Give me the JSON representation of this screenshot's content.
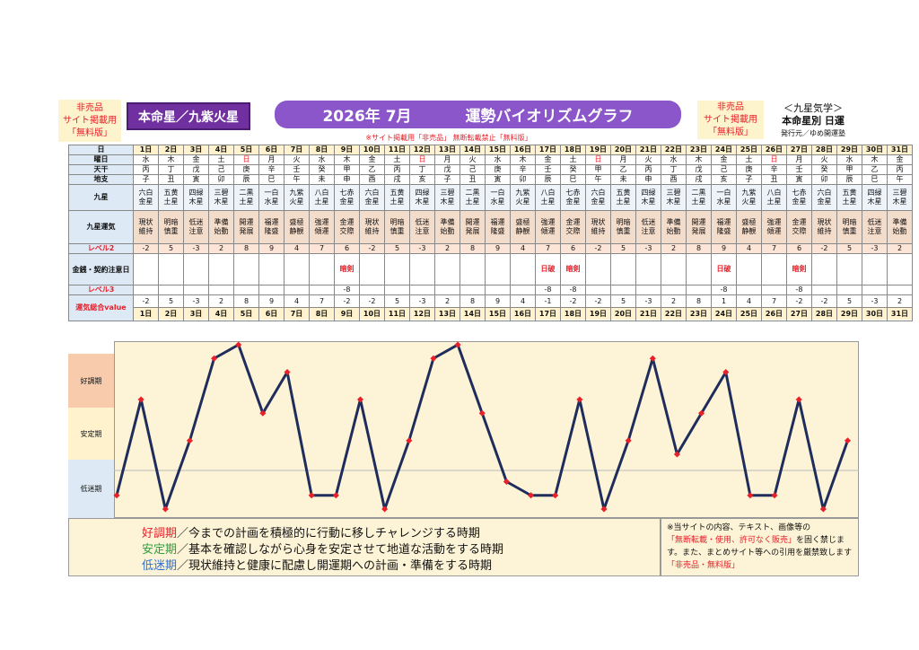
{
  "header": {
    "left_badge": [
      "非売品",
      "サイト掲載用",
      "「無料版」"
    ],
    "honmei": "本命星／九紫火星",
    "title_left": "2026年 7月",
    "title_right": "運勢バイオリズムグラフ",
    "notice": "※サイト掲載用「非売品」 無断転載禁止「無料版」",
    "right_badge": [
      "非売品",
      "サイト掲載用",
      "「無料版」"
    ],
    "kyusei_title": "＜九星気学＞",
    "kyusei_sub": "本命星別 日運",
    "publisher": "発行元／ゆめ開運塾"
  },
  "labels": {
    "day": "日",
    "yobi": "曜日",
    "tenkan": "天干",
    "chishi": "地支",
    "kyusei": "九星",
    "unki": "九星運気",
    "lv2": "レベル2",
    "kin": "金銭・契約注意日",
    "lv3": "レベル3",
    "total": "運気総合value"
  },
  "days": [
    "1日",
    "2日",
    "3日",
    "4日",
    "5日",
    "6日",
    "7日",
    "8日",
    "9日",
    "10日",
    "11日",
    "12日",
    "13日",
    "14日",
    "15日",
    "16日",
    "17日",
    "18日",
    "19日",
    "20日",
    "21日",
    "22日",
    "23日",
    "24日",
    "25日",
    "26日",
    "27日",
    "28日",
    "29日",
    "30日",
    "31日"
  ],
  "yobi": [
    "水",
    "木",
    "金",
    "土",
    "日",
    "月",
    "火",
    "水",
    "木",
    "金",
    "土",
    "日",
    "月",
    "火",
    "水",
    "木",
    "金",
    "土",
    "日",
    "月",
    "火",
    "水",
    "木",
    "金",
    "土",
    "日",
    "月",
    "火",
    "水",
    "木",
    "金"
  ],
  "tenkan": [
    "丙",
    "丁",
    "戊",
    "己",
    "庚",
    "辛",
    "壬",
    "癸",
    "甲",
    "乙",
    "丙",
    "丁",
    "戊",
    "己",
    "庚",
    "辛",
    "壬",
    "癸",
    "甲",
    "乙",
    "丙",
    "丁",
    "戊",
    "己",
    "庚",
    "辛",
    "壬",
    "癸",
    "甲",
    "乙",
    "丙"
  ],
  "chishi": [
    "子",
    "丑",
    "寅",
    "卯",
    "辰",
    "巳",
    "午",
    "未",
    "申",
    "酉",
    "戌",
    "亥",
    "子",
    "丑",
    "寅",
    "卯",
    "辰",
    "巳",
    "午",
    "未",
    "申",
    "酉",
    "戌",
    "亥",
    "子",
    "丑",
    "寅",
    "卯",
    "辰",
    "巳",
    "午"
  ],
  "kyusei": [
    [
      "六白",
      "金星"
    ],
    [
      "五黄",
      "土星"
    ],
    [
      "四緑",
      "木星"
    ],
    [
      "三碧",
      "木星"
    ],
    [
      "二黒",
      "土星"
    ],
    [
      "一白",
      "水星"
    ],
    [
      "九紫",
      "火星"
    ],
    [
      "八白",
      "土星"
    ],
    [
      "七赤",
      "金星"
    ],
    [
      "六白",
      "金星"
    ],
    [
      "五黄",
      "土星"
    ],
    [
      "四緑",
      "木星"
    ],
    [
      "三碧",
      "木星"
    ],
    [
      "二黒",
      "土星"
    ],
    [
      "一白",
      "水星"
    ],
    [
      "九紫",
      "火星"
    ],
    [
      "八白",
      "土星"
    ],
    [
      "七赤",
      "金星"
    ],
    [
      "六白",
      "金星"
    ],
    [
      "五黄",
      "土星"
    ],
    [
      "四緑",
      "木星"
    ],
    [
      "三碧",
      "木星"
    ],
    [
      "二黒",
      "土星"
    ],
    [
      "一白",
      "水星"
    ],
    [
      "九紫",
      "火星"
    ],
    [
      "八白",
      "土星"
    ],
    [
      "七赤",
      "金星"
    ],
    [
      "六白",
      "金星"
    ],
    [
      "五黄",
      "土星"
    ],
    [
      "四緑",
      "木星"
    ],
    [
      "三碧",
      "木星"
    ]
  ],
  "unki": [
    [
      "現状",
      "維持"
    ],
    [
      "明暗",
      "慎重"
    ],
    [
      "低迷",
      "注意"
    ],
    [
      "準備",
      "始動"
    ],
    [
      "開運",
      "発展"
    ],
    [
      "福運",
      "隆盛"
    ],
    [
      "盛極",
      "静観"
    ],
    [
      "強運",
      "傾運"
    ],
    [
      "金運",
      "交際"
    ],
    [
      "現状",
      "維持"
    ],
    [
      "明暗",
      "慎重"
    ],
    [
      "低迷",
      "注意"
    ],
    [
      "準備",
      "始動"
    ],
    [
      "開運",
      "発展"
    ],
    [
      "福運",
      "隆盛"
    ],
    [
      "盛極",
      "静観"
    ],
    [
      "強運",
      "傾運"
    ],
    [
      "金運",
      "交際"
    ],
    [
      "現状",
      "維持"
    ],
    [
      "明暗",
      "慎重"
    ],
    [
      "低迷",
      "注意"
    ],
    [
      "準備",
      "始動"
    ],
    [
      "開運",
      "発展"
    ],
    [
      "福運",
      "隆盛"
    ],
    [
      "盛極",
      "静観"
    ],
    [
      "強運",
      "傾運"
    ],
    [
      "金運",
      "交際"
    ],
    [
      "現状",
      "維持"
    ],
    [
      "明暗",
      "慎重"
    ],
    [
      "低迷",
      "注意"
    ],
    [
      "準備",
      "始動"
    ]
  ],
  "lv2": [
    "-2",
    "5",
    "-3",
    "2",
    "8",
    "9",
    "4",
    "7",
    "6",
    "-2",
    "5",
    "-3",
    "2",
    "8",
    "9",
    "4",
    "7",
    "6",
    "-2",
    "5",
    "-3",
    "2",
    "8",
    "9",
    "4",
    "7",
    "6",
    "-2",
    "5",
    "-3",
    "2"
  ],
  "kin": [
    "",
    "",
    "",
    "",
    "",
    "",
    "",
    "",
    "暗剣",
    "",
    "",
    "",
    "",
    "",
    "",
    "",
    "日破",
    "暗剣",
    "",
    "",
    "",
    "",
    "",
    "日破",
    "",
    "",
    "暗剣",
    "",
    "",
    "",
    ""
  ],
  "lv3": [
    "",
    "",
    "",
    "",
    "",
    "",
    "",
    "",
    "-8",
    "",
    "",
    "",
    "",
    "",
    "",
    "",
    "-8",
    "-8",
    "",
    "",
    "",
    "",
    "",
    "-8",
    "",
    "",
    "-8",
    "",
    "",
    "",
    ""
  ],
  "total": [
    "-2",
    "5",
    "-3",
    "2",
    "8",
    "9",
    "4",
    "7",
    "-2",
    "-2",
    "5",
    "-3",
    "2",
    "8",
    "9",
    "4",
    "-1",
    "-2",
    "-2",
    "5",
    "-3",
    "2",
    "8",
    "1",
    "4",
    "7",
    "-2",
    "-2",
    "5",
    "-3",
    "2"
  ],
  "zones": {
    "good": "好調期",
    "stable": "安定期",
    "low": "低迷期"
  },
  "legend": [
    {
      "term": "好調期",
      "text": "／今までの計画を積極的に行動に移しチャレンジする時期",
      "color": "#e8202a"
    },
    {
      "term": "安定期",
      "text": "／基本を確認しながら心身を安定させて地道な活動をする時期",
      "color": "#2e9e3e"
    },
    {
      "term": "低迷期",
      "text": "／現状維持と健康に配慮し開運期への計画・準備をする時期",
      "color": "#2f6fd1"
    }
  ],
  "note": {
    "line1": "※当サイトの内容、テキスト、画像等の",
    "red1": "「無断転載・使用、許可なく販売」",
    "line2": "を固く禁じます。また、まとめサイト等への引用を厳禁致します",
    "red2": "「非売品・無料版」"
  },
  "colors": {
    "line": "#1f2d5c",
    "point": "#e8202a",
    "title_bg": "#8b56c9"
  },
  "chart_data": {
    "type": "line",
    "x": [
      "1日",
      "2日",
      "3日",
      "4日",
      "5日",
      "6日",
      "7日",
      "8日",
      "9日",
      "10日",
      "11日",
      "12日",
      "13日",
      "14日",
      "15日",
      "16日",
      "17日",
      "18日",
      "19日",
      "20日",
      "21日",
      "22日",
      "23日",
      "24日",
      "25日",
      "26日",
      "27日",
      "28日",
      "29日",
      "30日",
      "31日"
    ],
    "series": [
      {
        "values": [
          -2,
          5,
          -3,
          2,
          8,
          9,
          4,
          7,
          -2,
          -2,
          5,
          -3,
          2,
          8,
          9,
          4,
          -1,
          -2,
          -2,
          5,
          -3,
          2,
          8,
          1,
          4,
          7,
          -2,
          -2,
          5,
          -3,
          2
        ]
      }
    ],
    "ylim": [
      -3,
      9
    ],
    "bands": [
      "好調期",
      "安定期",
      "低迷期"
    ]
  }
}
